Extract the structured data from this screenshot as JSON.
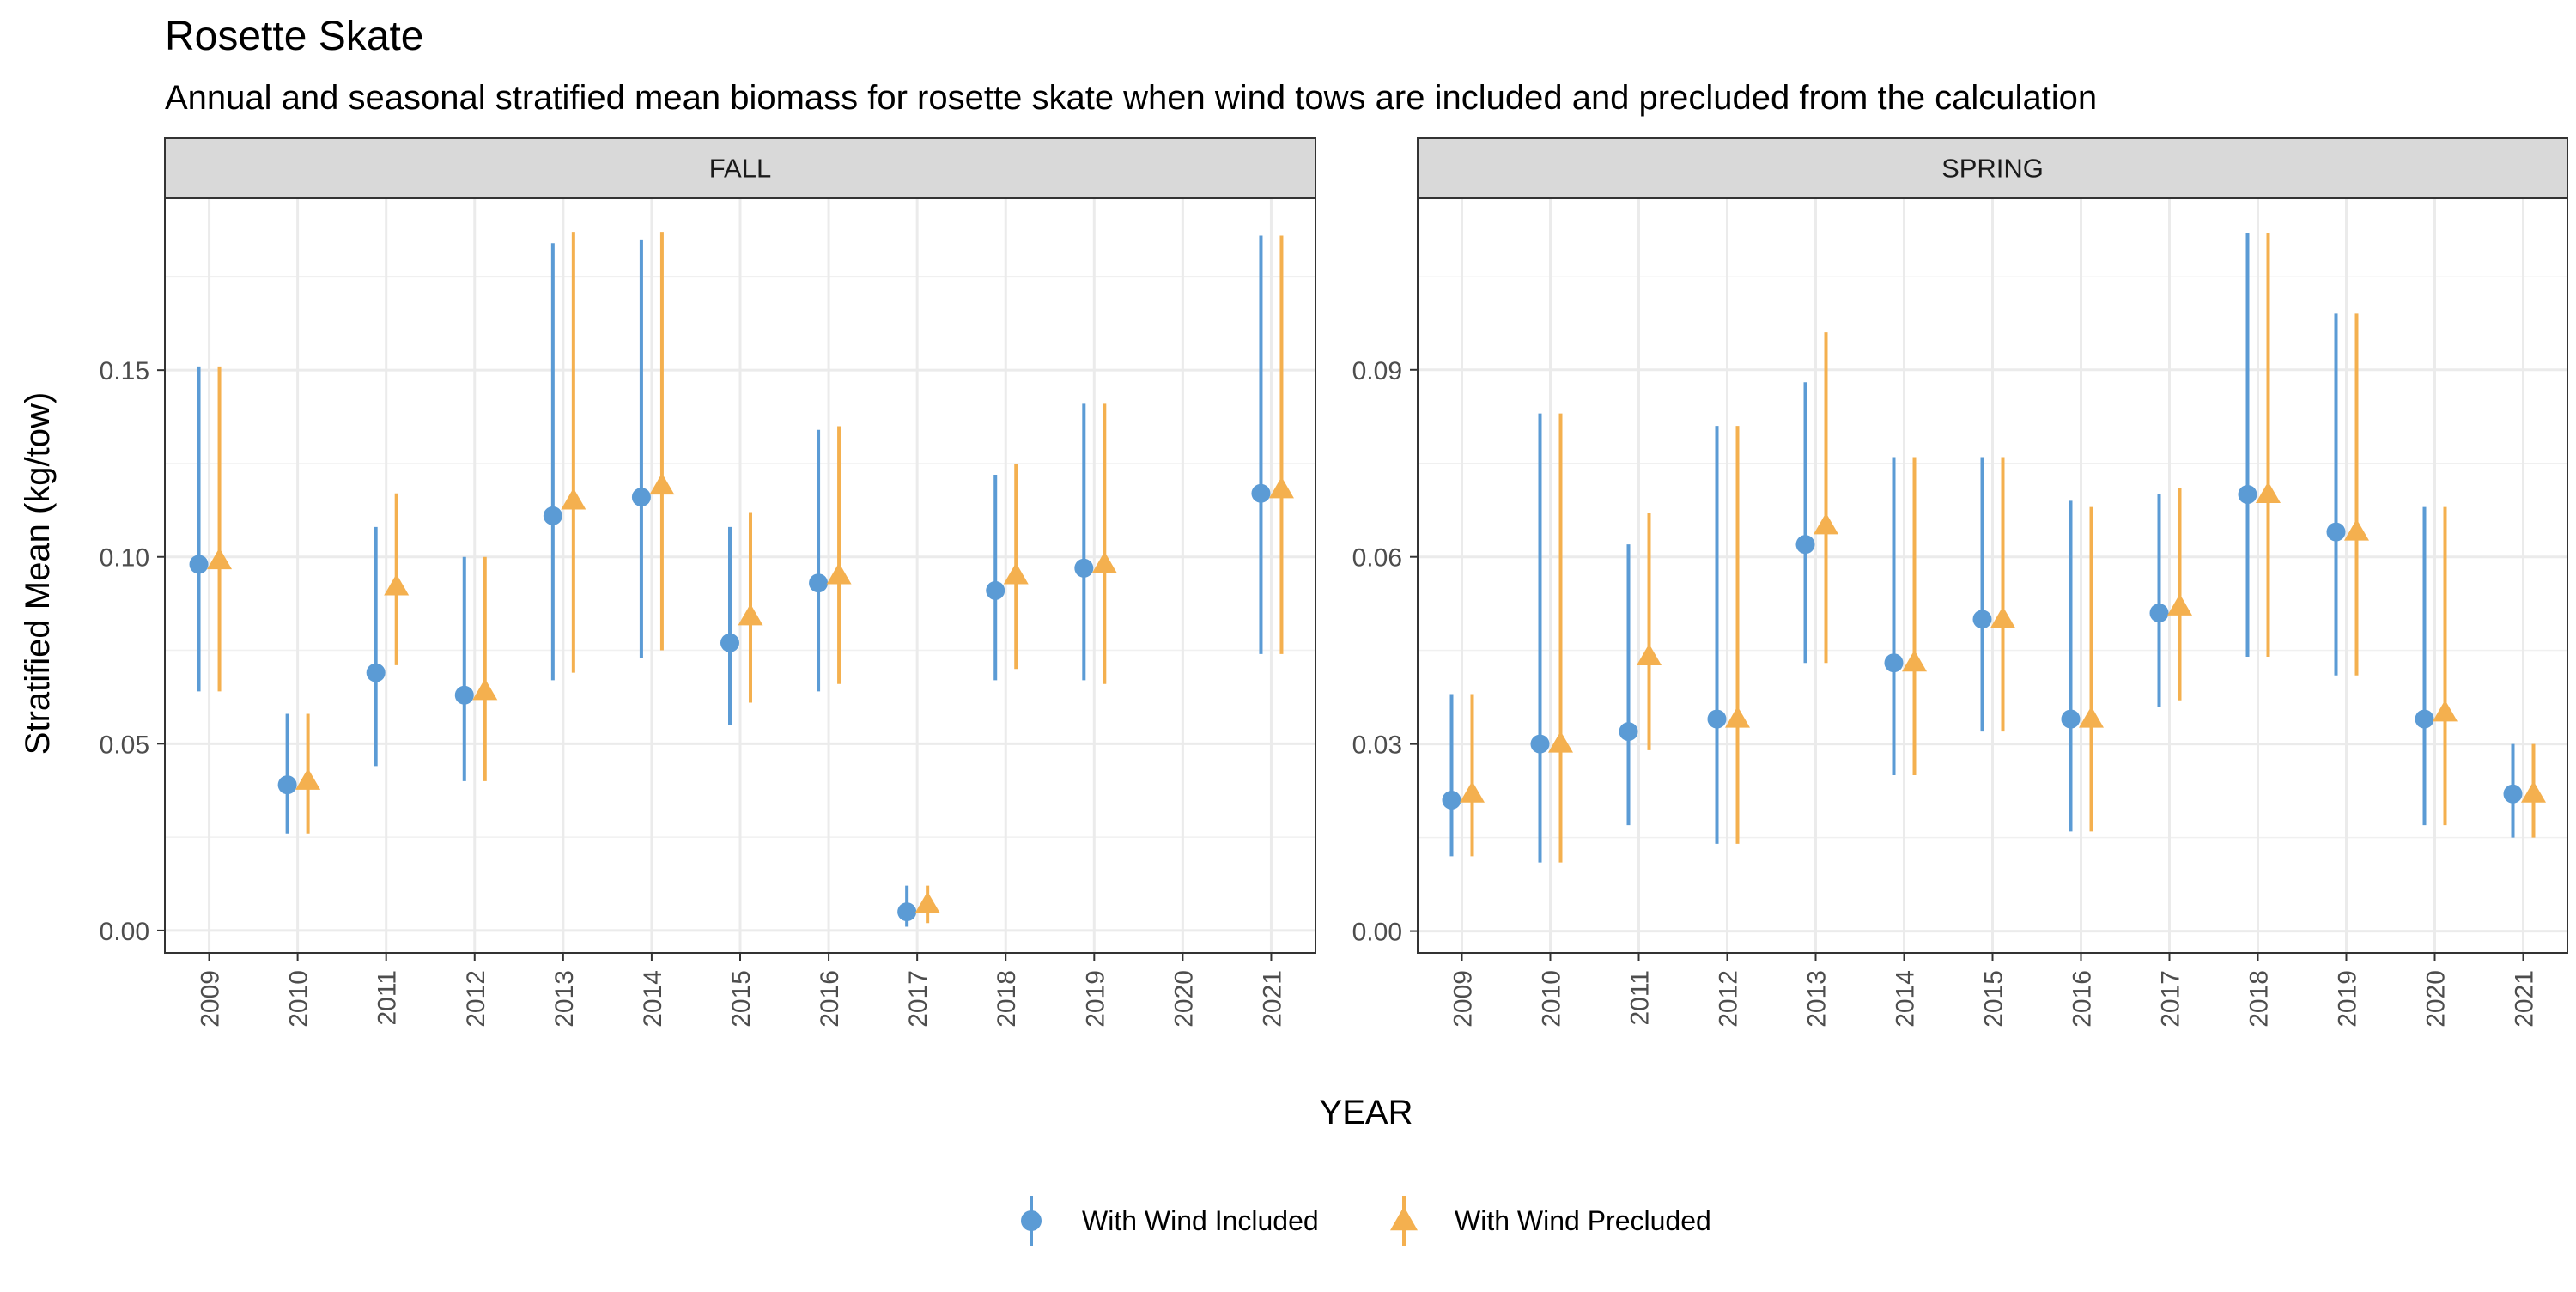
{
  "title": "Rosette Skate",
  "subtitle": "Annual and seasonal stratified mean biomass for rosette skate when wind tows are included and precluded from the calculation",
  "chart_data": {
    "type": "scatter",
    "title": "Rosette Skate",
    "subtitle": "Annual and seasonal stratified mean biomass for rosette skate when wind tows are included and precluded from the calculation",
    "xlabel": "YEAR",
    "ylabel": "Stratified Mean (kg/tow)",
    "grid": true,
    "legend_position": "bottom",
    "categories": [
      "2009",
      "2010",
      "2011",
      "2012",
      "2013",
      "2014",
      "2015",
      "2016",
      "2017",
      "2018",
      "2019",
      "2020",
      "2021"
    ],
    "series_styles": [
      {
        "name": "With Wind Included",
        "color": "#5B9BD5",
        "marker": "circle"
      },
      {
        "name": "With Wind Precluded",
        "color": "#F4B04F",
        "marker": "triangle"
      }
    ],
    "panels": [
      {
        "strip": "FALL",
        "ylim": [
          -0.006,
          0.196
        ],
        "yticks": [
          0.0,
          0.05,
          0.1,
          0.15
        ],
        "ytick_labels": [
          "0.00",
          "0.05",
          "0.10",
          "0.15"
        ],
        "series": [
          {
            "name": "With Wind Included",
            "values": [
              0.098,
              0.039,
              0.069,
              0.063,
              0.111,
              0.116,
              0.077,
              0.093,
              0.005,
              0.091,
              0.097,
              null,
              0.117
            ],
            "lower": [
              0.064,
              0.026,
              0.044,
              0.04,
              0.067,
              0.073,
              0.055,
              0.064,
              0.001,
              0.067,
              0.067,
              null,
              0.074
            ],
            "upper": [
              0.151,
              0.058,
              0.108,
              0.1,
              0.184,
              0.185,
              0.108,
              0.134,
              0.012,
              0.122,
              0.141,
              null,
              0.186
            ]
          },
          {
            "name": "With Wind Precluded",
            "values": [
              0.099,
              0.04,
              0.092,
              0.064,
              0.115,
              0.119,
              0.084,
              0.095,
              0.007,
              0.095,
              0.098,
              null,
              0.118
            ],
            "lower": [
              0.064,
              0.026,
              0.071,
              0.04,
              0.069,
              0.075,
              0.061,
              0.066,
              0.002,
              0.07,
              0.066,
              null,
              0.074
            ],
            "upper": [
              0.151,
              0.058,
              0.117,
              0.1,
              0.187,
              0.187,
              0.112,
              0.135,
              0.012,
              0.125,
              0.141,
              null,
              0.186
            ]
          }
        ]
      },
      {
        "strip": "SPRING",
        "ylim": [
          -0.0035,
          0.1175
        ],
        "yticks": [
          0.0,
          0.03,
          0.06,
          0.09
        ],
        "ytick_labels": [
          "0.00",
          "0.03",
          "0.06",
          "0.09"
        ],
        "series": [
          {
            "name": "With Wind Included",
            "values": [
              0.021,
              0.03,
              0.032,
              0.034,
              0.062,
              0.043,
              0.05,
              0.034,
              0.051,
              0.07,
              0.064,
              0.034,
              0.022
            ],
            "lower": [
              0.012,
              0.011,
              0.017,
              0.014,
              0.043,
              0.025,
              0.032,
              0.016,
              0.036,
              0.044,
              0.041,
              0.017,
              0.015
            ],
            "upper": [
              0.038,
              0.083,
              0.062,
              0.081,
              0.088,
              0.076,
              0.076,
              0.069,
              0.07,
              0.112,
              0.099,
              0.068,
              0.03
            ]
          },
          {
            "name": "With Wind Precluded",
            "values": [
              0.022,
              0.03,
              0.044,
              0.034,
              0.065,
              0.043,
              0.05,
              0.034,
              0.052,
              0.07,
              0.064,
              0.035,
              0.022
            ],
            "lower": [
              0.012,
              0.011,
              0.029,
              0.014,
              0.043,
              0.025,
              0.032,
              0.016,
              0.037,
              0.044,
              0.041,
              0.017,
              0.015
            ],
            "upper": [
              0.038,
              0.083,
              0.067,
              0.081,
              0.096,
              0.076,
              0.076,
              0.068,
              0.071,
              0.112,
              0.099,
              0.068,
              0.03
            ]
          }
        ]
      }
    ]
  }
}
